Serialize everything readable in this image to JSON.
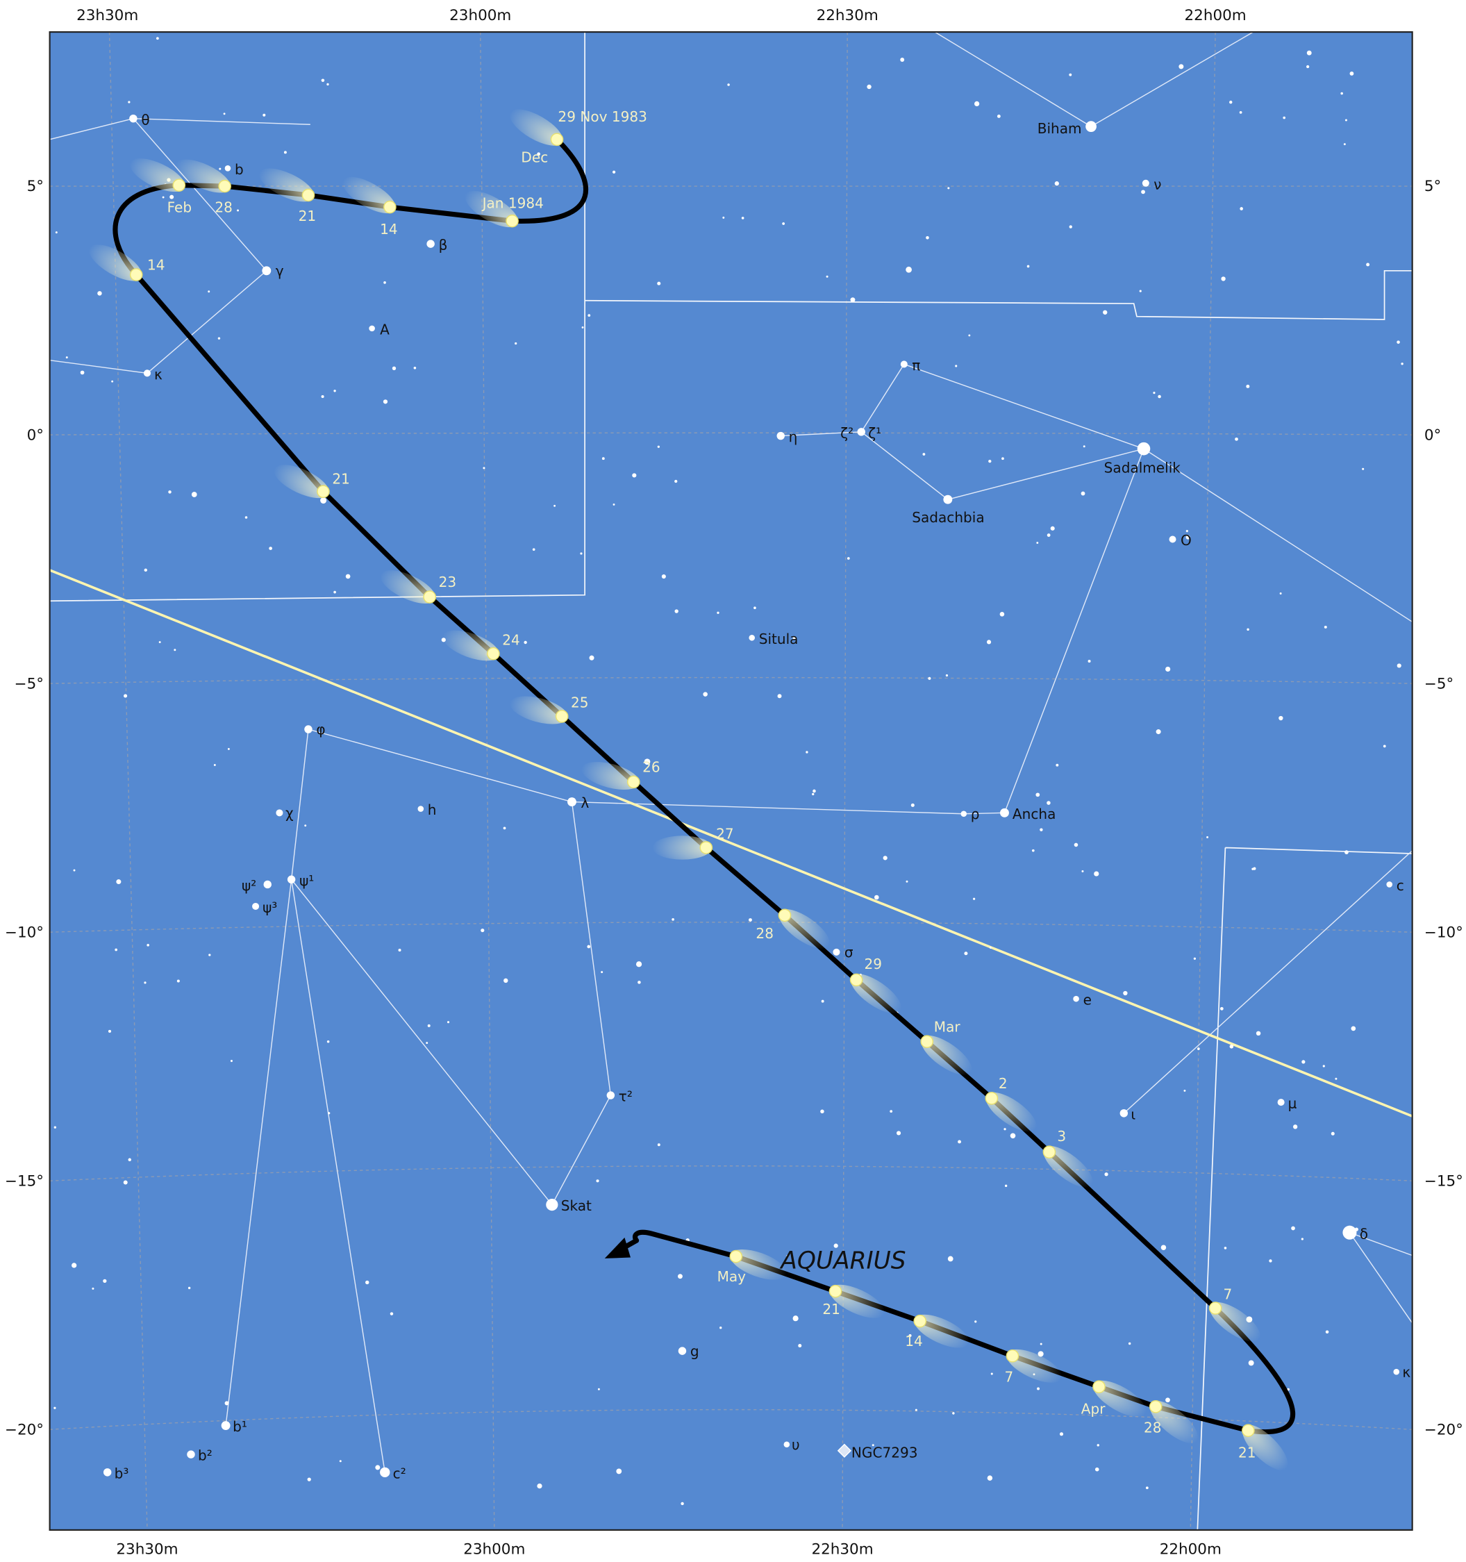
{
  "ra_labels": [
    "23h30m",
    "23h00m",
    "22h30m",
    "22h00m"
  ],
  "dec_labels": [
    "5°",
    "0°",
    "−5°",
    "−10°",
    "−15°",
    "−20°"
  ],
  "constellation": "AQUARIUS",
  "star_labels": [
    "θ",
    "b",
    "γ",
    "β",
    "A",
    "κ",
    "Biham",
    "ν",
    "π",
    "η",
    "ζ²",
    "ζ¹",
    "Sadalmelik",
    "Sadachbia",
    "O",
    "Situla",
    "φ",
    "χ",
    "h",
    "λ",
    "ρ",
    "Ancha",
    "ψ²",
    "ψ¹",
    "ψ³",
    "σ",
    "e",
    "c",
    "τ²",
    "ι",
    "μ",
    "Skat",
    "δ",
    "g",
    "κ",
    "b¹",
    "b²",
    "b³",
    "υ",
    "NGC7293",
    "c²"
  ],
  "comet_labels": [
    "29 Nov 1983",
    "Dec",
    "Jan 1984",
    "14",
    "21",
    "28",
    "Feb",
    "14",
    "21",
    "23",
    "24",
    "25",
    "26",
    "27",
    "28",
    "29",
    "Mar",
    "2",
    "3",
    "7",
    "21",
    "28",
    "Apr",
    "7",
    "14",
    "21",
    "May"
  ]
}
